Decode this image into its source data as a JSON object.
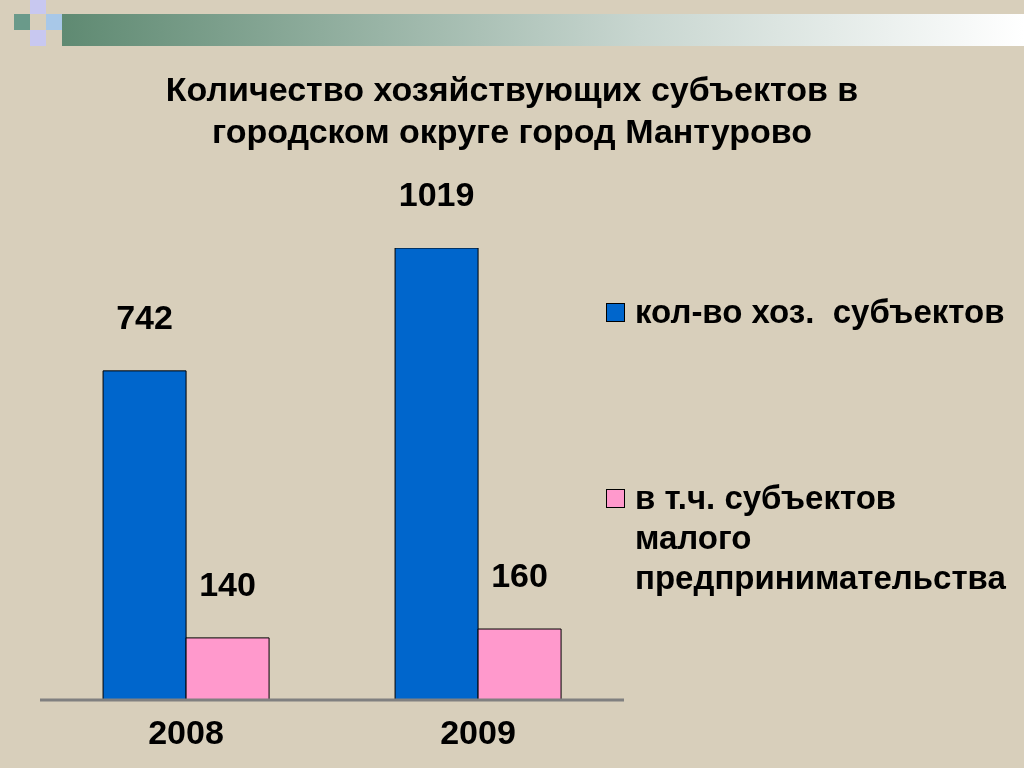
{
  "chart_data": {
    "type": "bar",
    "title": "Количество хозяйствующих субъектов в городском округе город Мантурово",
    "categories": [
      "2008",
      "2009"
    ],
    "series": [
      {
        "name": "кол-во хоз.  субъектов",
        "color": "#0066cc",
        "values": [
          742,
          1019
        ]
      },
      {
        "name": "в т.ч. субъектов малого предпринимательства",
        "color": "#ff99cc",
        "values": [
          140,
          160
        ]
      }
    ],
    "data_labels": true,
    "legend": "right"
  }
}
